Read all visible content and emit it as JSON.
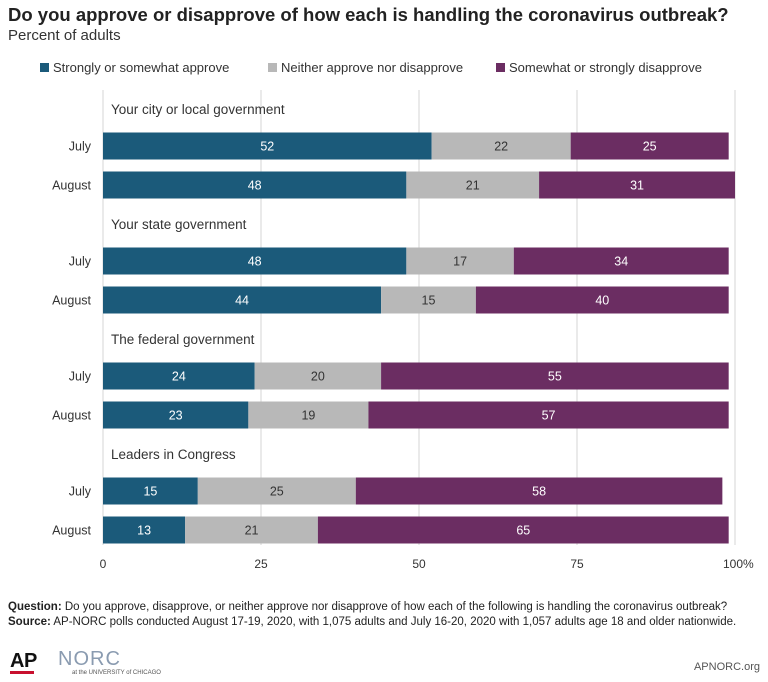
{
  "title": "Do you approve or disapprove of how each is handling the coronavirus outbreak?",
  "subtitle": "Percent of adults",
  "colors": {
    "approve": "#1b5a7a",
    "neither": "#b8b8b8",
    "disapprove": "#6b2d62",
    "grid": "#d6d6d6",
    "text": "#333333"
  },
  "chart_data": {
    "type": "bar",
    "orientation": "horizontal",
    "stacked": true,
    "xlim": [
      0,
      100
    ],
    "x_ticks": [
      "0",
      "25",
      "50",
      "75",
      "100%"
    ],
    "x_tick_values": [
      0,
      25,
      50,
      75,
      100
    ],
    "grid": true,
    "legend_position": "top",
    "series": [
      {
        "name": "Strongly or somewhat approve",
        "color_key": "approve"
      },
      {
        "name": "Neither approve nor disapprove",
        "color_key": "neither"
      },
      {
        "name": "Somewhat or strongly disapprove",
        "color_key": "disapprove"
      }
    ],
    "groups": [
      {
        "label": "Your city or local government",
        "rows": [
          {
            "label": "July",
            "values": [
              52,
              22,
              25
            ]
          },
          {
            "label": "August",
            "values": [
              48,
              21,
              31
            ]
          }
        ]
      },
      {
        "label": "Your state government",
        "rows": [
          {
            "label": "July",
            "values": [
              48,
              17,
              34
            ]
          },
          {
            "label": "August",
            "values": [
              44,
              15,
              40
            ]
          }
        ]
      },
      {
        "label": "The federal government",
        "rows": [
          {
            "label": "July",
            "values": [
              24,
              20,
              55
            ]
          },
          {
            "label": "August",
            "values": [
              23,
              19,
              57
            ]
          }
        ]
      },
      {
        "label": "Leaders in Congress",
        "rows": [
          {
            "label": "July",
            "values": [
              15,
              25,
              58
            ]
          },
          {
            "label": "August",
            "values": [
              13,
              21,
              65
            ]
          }
        ]
      }
    ]
  },
  "notes": {
    "question_label": "Question:",
    "question_text": "Do you approve, disapprove, or neither approve nor disapprove of how each of the following is handling the coronavirus outbreak?",
    "source_label": "Source:",
    "source_text": "AP-NORC polls conducted August 17-19, 2020, with 1,075 adults and July 16-20, 2020 with 1,057 adults age 18 and older nationwide."
  },
  "footer": {
    "ap_logo": "AP",
    "norc_logo": "NORC",
    "norc_sub": "at the UNIVERSITY of CHICAGO",
    "url": "APNORC.org"
  }
}
